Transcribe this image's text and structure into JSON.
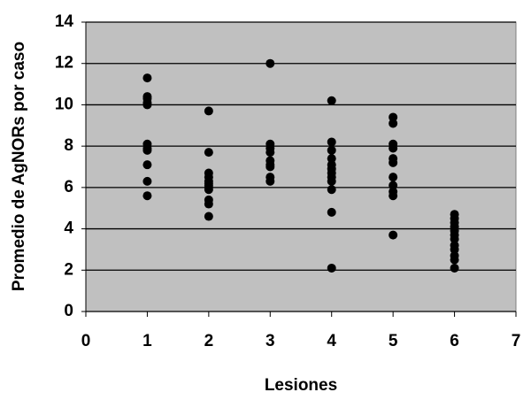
{
  "chart_data": {
    "type": "scatter",
    "x_label": "Lesiones",
    "y_label": "Promedio de AgNORs por caso",
    "x": [
      1,
      1,
      1,
      1,
      1,
      1,
      1,
      1,
      1,
      1,
      1,
      2,
      2,
      2,
      2,
      2,
      2,
      2,
      2,
      2,
      2,
      2,
      2,
      3,
      3,
      3,
      3,
      3,
      3,
      3,
      3,
      3,
      4,
      4,
      4,
      4,
      4,
      4,
      4,
      4,
      4,
      4,
      4,
      4,
      5,
      5,
      5,
      5,
      5,
      5,
      5,
      5,
      5,
      5,
      5,
      6,
      6,
      6,
      6,
      6,
      6,
      6,
      6,
      6,
      6,
      6,
      6
    ],
    "values": [
      11.3,
      10.4,
      10.3,
      10.1,
      10.0,
      8.1,
      7.9,
      7.8,
      7.1,
      6.3,
      5.6,
      9.7,
      7.7,
      6.7,
      6.5,
      6.3,
      6.2,
      6.1,
      6.0,
      5.9,
      5.4,
      5.2,
      4.6,
      12.0,
      8.1,
      7.9,
      7.7,
      7.3,
      7.1,
      7.0,
      6.5,
      6.3,
      10.2,
      8.2,
      7.8,
      7.4,
      7.1,
      6.9,
      6.7,
      6.5,
      6.3,
      5.9,
      4.8,
      2.1,
      9.4,
      9.1,
      8.1,
      7.9,
      7.4,
      7.2,
      6.5,
      6.1,
      5.8,
      5.6,
      3.7,
      4.7,
      4.5,
      4.3,
      4.1,
      3.9,
      3.7,
      3.5,
      3.2,
      3.0,
      2.7,
      2.5,
      2.1
    ],
    "color": "#000000",
    "background": "#c0c0c0",
    "xlim": [
      0,
      7
    ],
    "xticks": [
      0,
      1,
      2,
      3,
      4,
      5,
      6,
      7
    ],
    "ylim": [
      0,
      14
    ],
    "yticks": [
      0,
      2,
      4,
      6,
      8,
      10,
      12,
      14
    ],
    "grid": true
  }
}
